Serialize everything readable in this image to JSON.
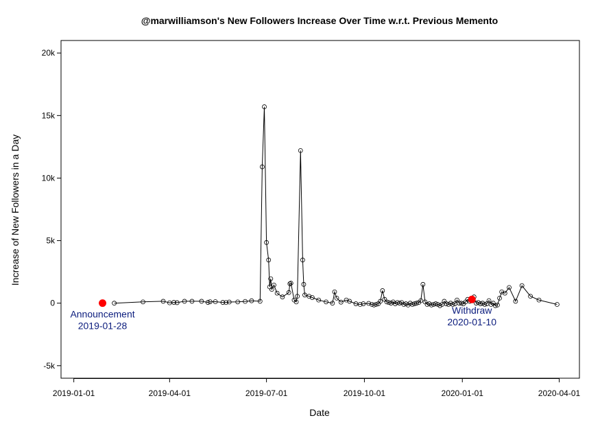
{
  "chart_data": {
    "type": "line",
    "title": "@marwilliamson's New Followers Increase Over Time w.r.t. Previous Memento",
    "xlabel": "Date",
    "ylabel": "Increase of New Followers in a Day",
    "x_ticks": [
      "2019-01-01",
      "2019-04-01",
      "2019-07-01",
      "2019-10-01",
      "2020-01-01",
      "2020-04-01"
    ],
    "y_ticks": [
      -5000,
      0,
      5000,
      10000,
      15000,
      20000
    ],
    "y_tick_labels": [
      "-5k",
      "0",
      "5k",
      "10k",
      "15k",
      "20k"
    ],
    "xlim": [
      "2018-12-20",
      "2020-04-20"
    ],
    "ylim": [
      -6000,
      21000
    ],
    "grid": false,
    "series": [
      {
        "color": "#000000",
        "marker": "open-circle",
        "points": [
          [
            "2019-02-08",
            0
          ],
          [
            "2019-03-07",
            100
          ],
          [
            "2019-03-26",
            150
          ],
          [
            "2019-04-01",
            30
          ],
          [
            "2019-04-05",
            60
          ],
          [
            "2019-04-08",
            40
          ],
          [
            "2019-04-15",
            150
          ],
          [
            "2019-04-22",
            150
          ],
          [
            "2019-05-01",
            150
          ],
          [
            "2019-05-07",
            60
          ],
          [
            "2019-05-09",
            110
          ],
          [
            "2019-05-14",
            120
          ],
          [
            "2019-05-21",
            60
          ],
          [
            "2019-05-24",
            50
          ],
          [
            "2019-05-27",
            90
          ],
          [
            "2019-06-04",
            100
          ],
          [
            "2019-06-11",
            140
          ],
          [
            "2019-06-17",
            190
          ],
          [
            "2019-06-25",
            150
          ],
          [
            "2019-06-27",
            10900
          ],
          [
            "2019-06-29",
            15700
          ],
          [
            "2019-07-01",
            4850
          ],
          [
            "2019-07-03",
            3450
          ],
          [
            "2019-07-04",
            1300
          ],
          [
            "2019-07-05",
            1950
          ],
          [
            "2019-07-06",
            1100
          ],
          [
            "2019-07-08",
            1450
          ],
          [
            "2019-07-11",
            800
          ],
          [
            "2019-07-16",
            500
          ],
          [
            "2019-07-22",
            850
          ],
          [
            "2019-07-23",
            1550
          ],
          [
            "2019-07-24",
            1600
          ],
          [
            "2019-07-27",
            250
          ],
          [
            "2019-07-29",
            100
          ],
          [
            "2019-07-30",
            550
          ],
          [
            "2019-08-02",
            12200
          ],
          [
            "2019-08-04",
            3450
          ],
          [
            "2019-08-05",
            1500
          ],
          [
            "2019-08-06",
            650
          ],
          [
            "2019-08-10",
            550
          ],
          [
            "2019-08-13",
            450
          ],
          [
            "2019-08-19",
            250
          ],
          [
            "2019-08-26",
            100
          ],
          [
            "2019-09-01",
            0
          ],
          [
            "2019-09-03",
            900
          ],
          [
            "2019-09-05",
            400
          ],
          [
            "2019-09-09",
            80
          ],
          [
            "2019-09-14",
            250
          ],
          [
            "2019-09-17",
            150
          ],
          [
            "2019-09-23",
            -50
          ],
          [
            "2019-09-27",
            -100
          ],
          [
            "2019-09-30",
            -50
          ],
          [
            "2019-10-05",
            -20
          ],
          [
            "2019-10-08",
            -100
          ],
          [
            "2019-10-10",
            -150
          ],
          [
            "2019-10-12",
            -100
          ],
          [
            "2019-10-14",
            -50
          ],
          [
            "2019-10-16",
            150
          ],
          [
            "2019-10-18",
            1000
          ],
          [
            "2019-10-20",
            300
          ],
          [
            "2019-10-22",
            100
          ],
          [
            "2019-10-24",
            50
          ],
          [
            "2019-10-26",
            0
          ],
          [
            "2019-10-28",
            100
          ],
          [
            "2019-10-30",
            -50
          ],
          [
            "2019-11-01",
            50
          ],
          [
            "2019-11-03",
            0
          ],
          [
            "2019-11-05",
            50
          ],
          [
            "2019-11-07",
            -100
          ],
          [
            "2019-11-09",
            -50
          ],
          [
            "2019-11-11",
            -150
          ],
          [
            "2019-11-13",
            0
          ],
          [
            "2019-11-15",
            -100
          ],
          [
            "2019-11-17",
            -50
          ],
          [
            "2019-11-19",
            0
          ],
          [
            "2019-11-21",
            50
          ],
          [
            "2019-11-23",
            200
          ],
          [
            "2019-11-25",
            1500
          ],
          [
            "2019-11-27",
            100
          ],
          [
            "2019-11-29",
            -100
          ],
          [
            "2019-12-01",
            -50
          ],
          [
            "2019-12-03",
            -150
          ],
          [
            "2019-12-05",
            -100
          ],
          [
            "2019-12-07",
            -50
          ],
          [
            "2019-12-09",
            -100
          ],
          [
            "2019-12-11",
            -200
          ],
          [
            "2019-12-13",
            -100
          ],
          [
            "2019-12-15",
            150
          ],
          [
            "2019-12-17",
            -50
          ],
          [
            "2019-12-19",
            -100
          ],
          [
            "2019-12-21",
            0
          ],
          [
            "2019-12-23",
            -100
          ],
          [
            "2019-12-25",
            -50
          ],
          [
            "2019-12-27",
            250
          ],
          [
            "2019-12-29",
            0
          ],
          [
            "2019-12-31",
            0
          ],
          [
            "2020-01-02",
            -50
          ],
          [
            "2020-01-04",
            100
          ],
          [
            "2020-01-06",
            300
          ],
          [
            "2020-01-08",
            150
          ],
          [
            "2020-01-10",
            400
          ],
          [
            "2020-01-12",
            500
          ],
          [
            "2020-01-14",
            0
          ],
          [
            "2020-01-16",
            50
          ],
          [
            "2020-01-18",
            -50
          ],
          [
            "2020-01-20",
            0
          ],
          [
            "2020-01-22",
            -100
          ],
          [
            "2020-01-24",
            -50
          ],
          [
            "2020-01-26",
            200
          ],
          [
            "2020-01-28",
            -100
          ],
          [
            "2020-01-30",
            0
          ],
          [
            "2020-02-01",
            -200
          ],
          [
            "2020-02-03",
            -150
          ],
          [
            "2020-02-05",
            400
          ],
          [
            "2020-02-07",
            900
          ],
          [
            "2020-02-10",
            800
          ],
          [
            "2020-02-14",
            1250
          ],
          [
            "2020-02-20",
            150
          ],
          [
            "2020-02-26",
            1400
          ],
          [
            "2020-03-05",
            550
          ],
          [
            "2020-03-13",
            250
          ],
          [
            "2020-03-30",
            -100
          ]
        ]
      }
    ],
    "highlights": [
      {
        "x": "2019-01-28",
        "y": 0,
        "color": "#ff0000",
        "label_line1": "Announcement",
        "label_line2": "2019-01-28",
        "label_color": "#0b1c7d"
      },
      {
        "x": "2020-01-10",
        "y": 300,
        "color": "#ff0000",
        "label_line1": "Withdraw",
        "label_line2": "2020-01-10",
        "label_color": "#0b1c7d"
      }
    ]
  }
}
